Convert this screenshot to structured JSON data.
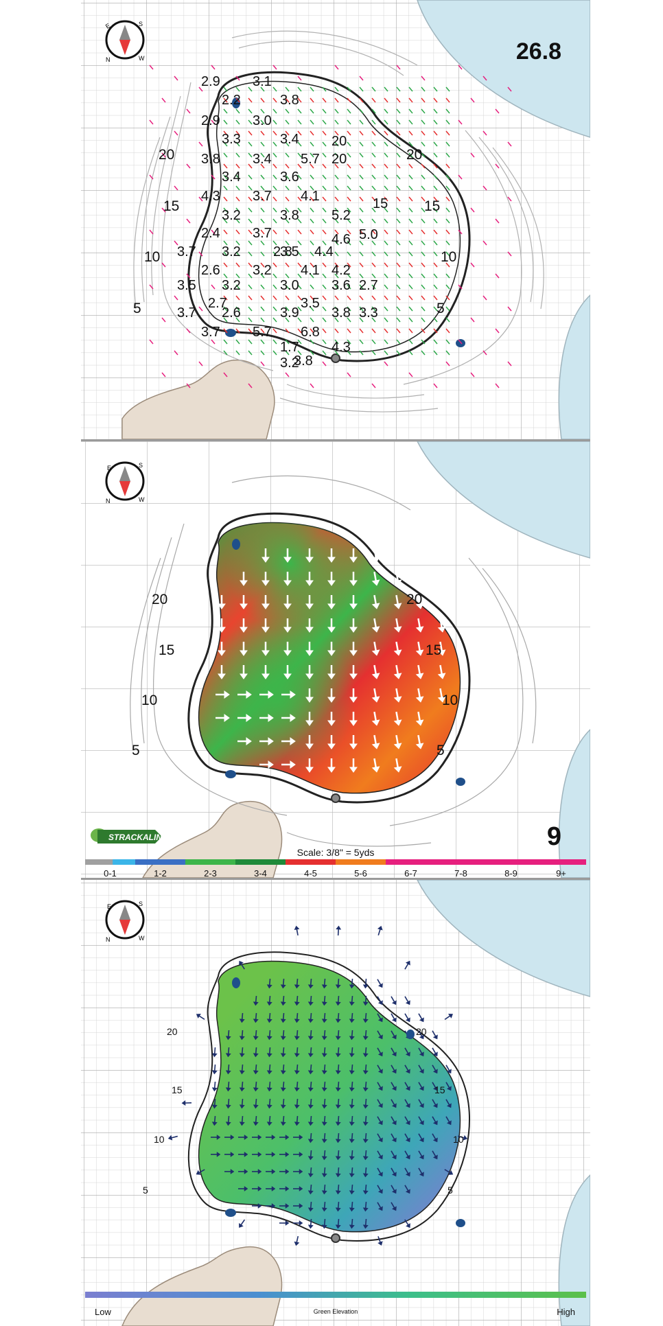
{
  "panel_slope_values": {
    "green_size": "26.8",
    "slope_readings": [
      "2.9",
      "3.1",
      "2.2",
      "3.8",
      "2.9",
      "3.0",
      "3.3",
      "3.4",
      "20",
      "3.8",
      "3.4",
      "5.7",
      "3.4",
      "3.6",
      "20",
      "4.3",
      "3.7",
      "4.1",
      "3.2",
      "3.8",
      "5.2",
      "15",
      "2.4",
      "3.7",
      "3.2",
      "2.8",
      "4.4",
      "3.5",
      "4.6",
      "5.0",
      "3.7",
      "2.6",
      "3.2",
      "4.1",
      "4.2",
      "3.5",
      "3.2",
      "3.0",
      "3.6",
      "2.7",
      "3.5",
      "2.7",
      "3.7",
      "2.6",
      "3.9",
      "3.8",
      "3.7",
      "5.7",
      "6.8",
      "3.3",
      "1.7",
      "4.3",
      "3.2",
      "3.8"
    ],
    "distance_labels": [
      "20",
      "15",
      "10",
      "5",
      "20",
      "15",
      "10",
      "5"
    ]
  },
  "panel_slope_map": {
    "hole_number": "9",
    "brand": "STRACKALINE",
    "scale_text": "Scale: 3/8\" = 5yds",
    "distance_labels": [
      "20",
      "15",
      "10",
      "5",
      "20",
      "15",
      "10",
      "5"
    ],
    "legend": [
      {
        "label": "0-1",
        "color": "#a0a0a0"
      },
      {
        "label": "1-2",
        "color": "#3a6fc4"
      },
      {
        "label": "2-3",
        "color": "#3db54a"
      },
      {
        "label": "3-4",
        "color": "#1f8a3a"
      },
      {
        "label": "4-5",
        "color": "#e53030"
      },
      {
        "label": "5-6",
        "color": "#f07c1e"
      },
      {
        "label": "6-7",
        "color": "#e6207e"
      },
      {
        "label": "7-8",
        "color": "#e6207e"
      },
      {
        "label": "8-9",
        "color": "#e6207e"
      },
      {
        "label": "9+",
        "color": "#e6207e"
      }
    ]
  },
  "panel_elevation": {
    "distance_labels": [
      "20",
      "15",
      "10",
      "5",
      "20",
      "15",
      "10",
      "5"
    ],
    "legend_low": "Low",
    "legend_title": "Green Elevation",
    "legend_high": "High",
    "gradient_colors": [
      "#7b7fd0",
      "#4a8fd0",
      "#3dbf8a",
      "#5cc04a"
    ]
  },
  "colors": {
    "water": "#cde6ef",
    "bunker": "#e8ddd0",
    "grid": "#cfcfcf",
    "arrow_blue": "#1e2f6b"
  }
}
